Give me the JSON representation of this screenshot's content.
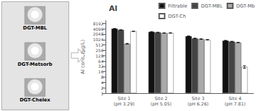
{
  "chart_data": {
    "type": "bar",
    "title": "Al",
    "ylabel": "Al conc. (μg/L)",
    "categories": [
      "Site 1 (pH 3.29)",
      "Site 2 (pH 5.05)",
      "Site 3 (pH 6.26)",
      "Site 4 (pH 7.81)"
    ],
    "series": [
      {
        "name": "Filtrable",
        "color": "#111111",
        "values": [
          4200,
          2800,
          1600,
          900
        ],
        "errors": [
          150,
          80,
          50,
          30
        ]
      },
      {
        "name": "DGT-MBL",
        "color": "#444444",
        "values": [
          3600,
          2600,
          1200,
          800
        ],
        "errors": [
          100,
          70,
          40,
          25
        ]
      },
      {
        "name": "DGT-Mb",
        "color": "#aaaaaa",
        "values": [
          600,
          2400,
          1100,
          700
        ],
        "errors": [
          30,
          60,
          35,
          20
        ]
      },
      {
        "name": "DGT-Ch",
        "color": "#ffffff",
        "values": [
          3000,
          2400,
          1000,
          30
        ],
        "errors": [
          80,
          60,
          30,
          5
        ]
      }
    ],
    "log": "y",
    "ylim": [
      1,
      12000
    ],
    "yticks": [
      1,
      2,
      4,
      8,
      16,
      32,
      64,
      128,
      256,
      512,
      1024,
      2048,
      4096,
      8192
    ],
    "grid": false,
    "legend": "upper right",
    "annotations": [
      "DGT-MBL",
      "DGT-Metsorb",
      "DGT-Chelex"
    ]
  }
}
